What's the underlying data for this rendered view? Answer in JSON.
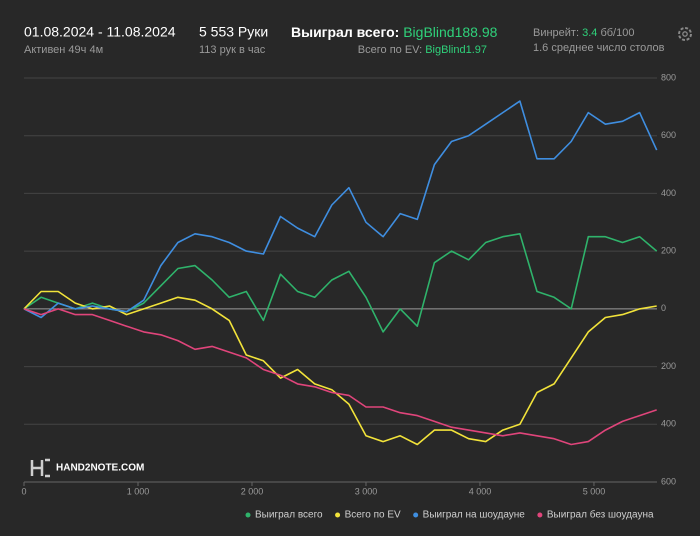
{
  "header": {
    "date_range": "01.08.2024 - 11.08.2024",
    "active": "Активен 49ч 4м",
    "hands": "5 553 Руки",
    "hands_per_hour": "113 рук в час",
    "won_label": "Выиграл всего:",
    "won_value": "BigBlind188.98",
    "ev_label": "Всего по EV:",
    "ev_value": "BigBlind1.97",
    "winrate_label": "Винрейт:",
    "winrate_value": "3.4",
    "winrate_unit": "бб/100",
    "tables": "1.6 среднее число столов"
  },
  "logo": "HAND2NOTE.COM",
  "chart_data": {
    "type": "line",
    "x": [
      0,
      150,
      300,
      450,
      600,
      750,
      900,
      1050,
      1200,
      1350,
      1500,
      1650,
      1800,
      1950,
      2100,
      2250,
      2400,
      2550,
      2700,
      2850,
      3000,
      3150,
      3300,
      3450,
      3600,
      3750,
      3900,
      4050,
      4200,
      4350,
      4500,
      4650,
      4800,
      4950,
      5100,
      5250,
      5400,
      5550
    ],
    "series": [
      {
        "name": "Выиграл всего",
        "color": "#2fb36b",
        "values": [
          0,
          40,
          20,
          0,
          20,
          0,
          -10,
          20,
          80,
          140,
          150,
          100,
          40,
          60,
          -40,
          120,
          60,
          40,
          100,
          130,
          40,
          -80,
          0,
          -60,
          160,
          200,
          170,
          230,
          250,
          260,
          60,
          40,
          0,
          250,
          250,
          230,
          250,
          200
        ]
      },
      {
        "name": "Всего по EV",
        "color": "#f2e33a",
        "values": [
          0,
          60,
          60,
          20,
          0,
          10,
          -20,
          0,
          20,
          40,
          30,
          0,
          -40,
          -160,
          -180,
          -240,
          -210,
          -260,
          -280,
          -330,
          -440,
          -460,
          -440,
          -470,
          -420,
          -420,
          -450,
          -460,
          -420,
          -400,
          -290,
          -260,
          -170,
          -80,
          -30,
          -20,
          0,
          10
        ]
      },
      {
        "name": "Выиграл на шоудауне",
        "color": "#3f8ee0",
        "values": [
          0,
          -30,
          20,
          0,
          10,
          0,
          -10,
          30,
          150,
          230,
          260,
          250,
          230,
          200,
          190,
          320,
          280,
          250,
          360,
          420,
          300,
          250,
          330,
          310,
          500,
          580,
          600,
          640,
          680,
          720,
          520,
          520,
          580,
          680,
          640,
          650,
          680,
          550
        ]
      },
      {
        "name": "Выиграл без шоудауна",
        "color": "#e0457b",
        "values": [
          0,
          -20,
          0,
          -20,
          -20,
          -40,
          -60,
          -80,
          -90,
          -110,
          -140,
          -130,
          -150,
          -170,
          -210,
          -230,
          -260,
          -270,
          -290,
          -300,
          -340,
          -340,
          -360,
          -370,
          -390,
          -410,
          -420,
          -430,
          -440,
          -430,
          -440,
          -450,
          -470,
          -460,
          -420,
          -390,
          -370,
          -350
        ]
      }
    ],
    "xlim": [
      0,
      5553
    ],
    "xticks": [
      0,
      {
        "value": 1000,
        "label": "1 000"
      },
      {
        "value": 2000,
        "label": "2 000"
      },
      {
        "value": 3000,
        "label": "3 000"
      },
      {
        "value": 4000,
        "label": "4 000"
      },
      {
        "value": 5000,
        "label": "5 000"
      }
    ],
    "ylim": [
      -600,
      800
    ],
    "yticks": [
      {
        "value": -600,
        "label": "600"
      },
      {
        "value": -400,
        "label": "400"
      },
      {
        "value": -200,
        "label": "200"
      },
      0,
      200,
      400,
      600,
      800
    ],
    "grid": true
  }
}
